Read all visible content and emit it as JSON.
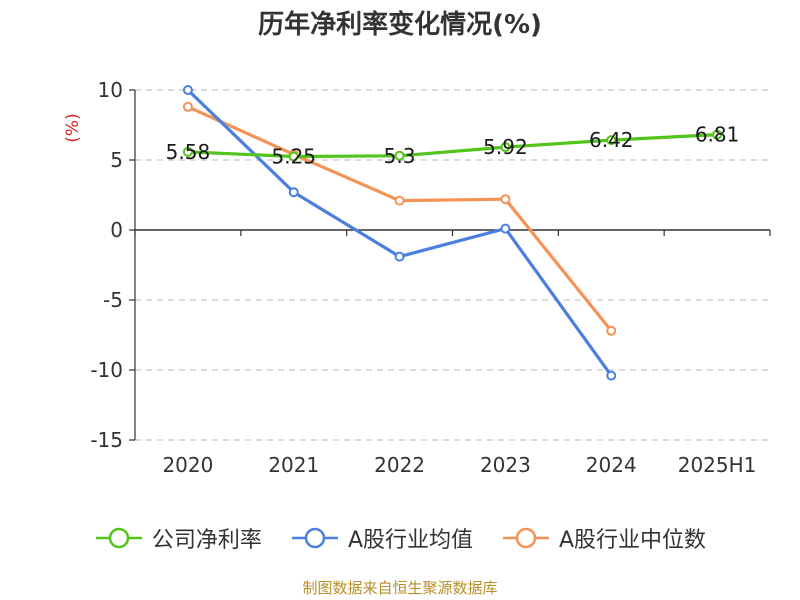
{
  "chart_data": {
    "type": "line",
    "title": "历年净利率变化情况(%)",
    "ylabel": "(%)",
    "xlabel": "",
    "categories": [
      "2020",
      "2021",
      "2022",
      "2023",
      "2024",
      "2025H1"
    ],
    "ylim": [
      -15,
      10
    ],
    "yticks": [
      10,
      5,
      0,
      -5,
      -10,
      -15
    ],
    "y_tick_labels": [
      "10",
      "5",
      "0",
      "-5",
      "-10",
      "-15"
    ],
    "grid": true,
    "legend_position": "bottom",
    "series": [
      {
        "name": "公司净利率",
        "color": "#52c41a",
        "values": [
          5.58,
          5.25,
          5.3,
          5.92,
          6.42,
          6.81
        ],
        "labels": [
          "5.58",
          "5.25",
          "5.3",
          "5.92",
          "6.42",
          "6.81"
        ]
      },
      {
        "name": "A股行业均值",
        "color": "#4a7fe0",
        "values": [
          10.0,
          2.7,
          -1.9,
          0.1,
          -10.4,
          null
        ]
      },
      {
        "name": "A股行业中位数",
        "color": "#f59256",
        "values": [
          8.8,
          5.4,
          2.1,
          2.2,
          -7.2,
          null
        ]
      }
    ]
  },
  "footer": {
    "source": "制图数据来自恒生聚源数据库"
  }
}
